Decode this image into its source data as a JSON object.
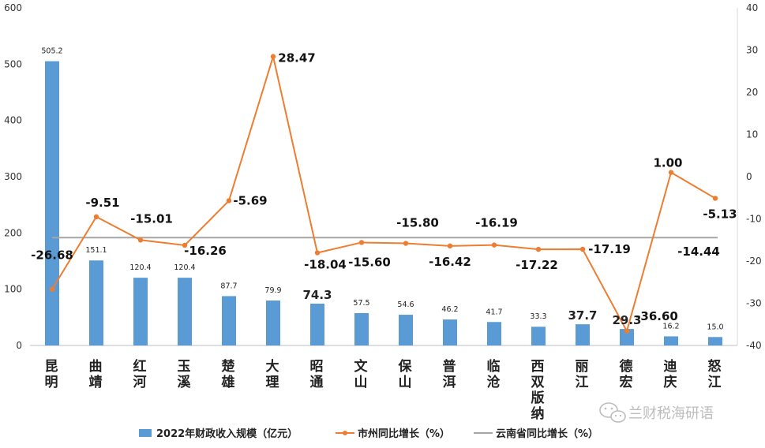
{
  "chart_data": {
    "type": "bar+line",
    "categories": [
      "昆明",
      "曲靖",
      "红河",
      "玉溪",
      "楚雄",
      "大理",
      "昭通",
      "文山",
      "保山",
      "普洱",
      "临沧",
      "西双版纳",
      "丽江",
      "德宏",
      "迪庆",
      "怒江"
    ],
    "series": [
      {
        "name": "2022年财政收入规模（亿元）",
        "type": "bar",
        "axis": "left",
        "color": "#5b9bd5",
        "values": [
          505.2,
          151.1,
          120.4,
          120.4,
          87.7,
          79.9,
          74.3,
          57.5,
          54.6,
          46.2,
          41.7,
          33.3,
          37.7,
          29.3,
          16.2,
          15.0
        ],
        "labels": [
          "505.2",
          "151.1",
          "120.4",
          "120.4",
          "87.7",
          "79.9",
          "74.3",
          "57.5",
          "54.6",
          "46.2",
          "41.7",
          "33.3",
          "37.7",
          "29.3",
          "16.2",
          "15.0"
        ]
      },
      {
        "name": "市州同比增长（%）",
        "type": "line",
        "axis": "right",
        "color": "#ed7d31",
        "values": [
          -26.68,
          -9.51,
          -15.01,
          -16.26,
          -5.69,
          28.47,
          -18.04,
          -15.6,
          -15.8,
          -16.42,
          -16.19,
          -17.22,
          -17.19,
          -36.6,
          1.0,
          -5.13
        ],
        "labels": [
          "-26.68",
          "-9.51",
          "-15.01",
          "-16.26",
          "-5.69",
          "28.47",
          "-18.04",
          "-15.60",
          "-15.80",
          "-16.42",
          "-16.19",
          "-17.22",
          "-17.19",
          "-36.60",
          "1.00",
          "-5.13"
        ]
      },
      {
        "name": "云南省同比增长（%）",
        "type": "line",
        "axis": "right",
        "color": "#a5a5a5",
        "value": -14.44,
        "label": "-14.44"
      }
    ],
    "y_left": {
      "min": 0,
      "max": 600,
      "step": 100,
      "ticks": [
        "0",
        "100",
        "200",
        "300",
        "400",
        "500",
        "600"
      ]
    },
    "y_right": {
      "min": -40,
      "max": 40,
      "step": 10,
      "ticks": [
        "-40",
        "-30",
        "-20",
        "-10",
        "0",
        "10",
        "20",
        "30",
        "40"
      ]
    },
    "legend_position": "bottom",
    "grid": false
  },
  "watermark": {
    "text": "兰财税海研语",
    "icon": "wechat-icon"
  }
}
